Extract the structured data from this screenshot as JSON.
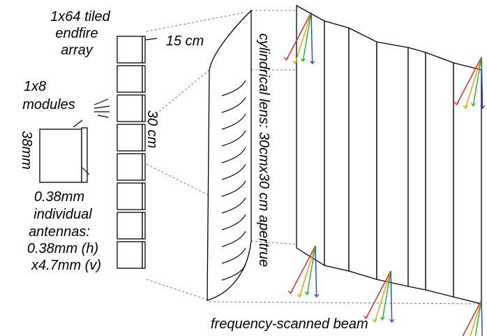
{
  "labels": {
    "array": [
      "1x64  tiled",
      "endfire",
      "array"
    ],
    "modules": [
      "1x8",
      "modules"
    ],
    "module_height": "38mm",
    "antennas": [
      "0.38mm",
      "individual",
      "antennas:",
      "0.38mm (h)",
      "x4.7mm (v)"
    ],
    "depth": "15 cm",
    "height": "30 cm",
    "lens": "cylindrical  lens: 30cmx30 cm apertrue",
    "beam": "frequency-scanned beam"
  }
}
